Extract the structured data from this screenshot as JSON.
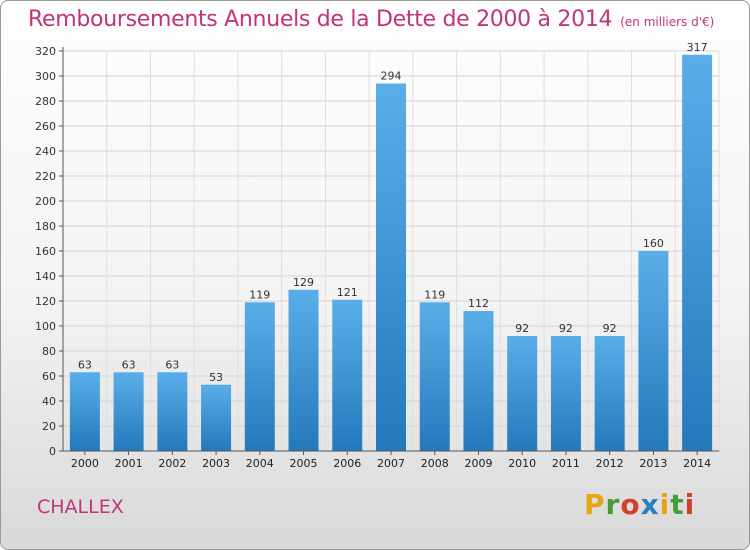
{
  "chart_data": {
    "type": "bar",
    "title": "Remboursements Annuels de la Dette de 2000 à 2014",
    "subtitle": "(en milliers d'€)",
    "categories": [
      "2000",
      "2001",
      "2002",
      "2003",
      "2004",
      "2005",
      "2006",
      "2007",
      "2008",
      "2009",
      "2010",
      "2011",
      "2012",
      "2013",
      "2014"
    ],
    "values": [
      63,
      63,
      63,
      53,
      119,
      129,
      121,
      294,
      119,
      112,
      92,
      92,
      92,
      160,
      317
    ],
    "ylim": [
      0,
      320
    ],
    "yticks": [
      0,
      20,
      40,
      60,
      80,
      100,
      120,
      140,
      160,
      180,
      200,
      220,
      240,
      260,
      280,
      300,
      320
    ],
    "grid": true,
    "legend": "none"
  },
  "footer": {
    "commune": "CHALLEX",
    "logo": "Proxiti"
  },
  "colors": {
    "title": "#c0357a",
    "bar_light": "#5aaee8",
    "bar_dark": "#2479bb",
    "logo": [
      "#e8a317",
      "#4b9a3a",
      "#d0402a",
      "#2c7ec2"
    ]
  }
}
